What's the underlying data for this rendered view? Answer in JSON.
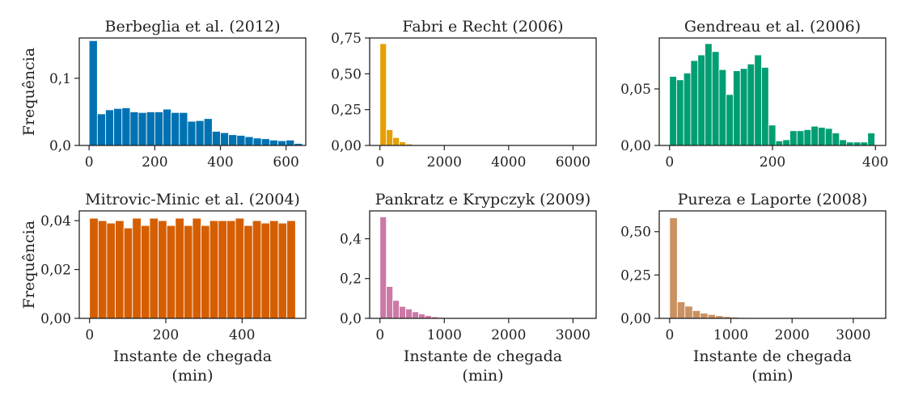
{
  "chart_data": [
    {
      "type": "bar",
      "title": "Berbeglia et al. (2012)",
      "color": "#0072b2",
      "xlabel": "",
      "ylabel": "Frequência",
      "xlim": [
        -30,
        660
      ],
      "ylim": [
        0,
        0.16
      ],
      "xticks": [
        0,
        200,
        400,
        600
      ],
      "xtick_labels": [
        "0",
        "200",
        "400",
        "600"
      ],
      "yticks": [
        0,
        0.1
      ],
      "ytick_labels": [
        "0,0",
        "0,1"
      ],
      "bin_width": 25,
      "x": [
        12.5,
        37.5,
        62.5,
        87.5,
        112.5,
        137.5,
        162.5,
        187.5,
        212.5,
        237.5,
        262.5,
        287.5,
        312.5,
        337.5,
        362.5,
        387.5,
        412.5,
        437.5,
        462.5,
        487.5,
        512.5,
        537.5,
        562.5,
        587.5,
        612.5,
        637.5
      ],
      "values": [
        0.156,
        0.047,
        0.053,
        0.055,
        0.056,
        0.05,
        0.049,
        0.05,
        0.05,
        0.054,
        0.049,
        0.049,
        0.036,
        0.037,
        0.04,
        0.021,
        0.019,
        0.016,
        0.015,
        0.013,
        0.011,
        0.01,
        0.008,
        0.007,
        0.008,
        0.003
      ]
    },
    {
      "type": "bar",
      "title": "Fabri e Recht (2006)",
      "color": "#e69f00",
      "xlabel": "",
      "ylabel": "",
      "xlim": [
        -320,
        6720
      ],
      "ylim": [
        0,
        0.75
      ],
      "xticks": [
        0,
        2000,
        4000,
        6000
      ],
      "xtick_labels": [
        "0",
        "2000",
        "4000",
        "6000"
      ],
      "yticks": [
        0,
        0.25,
        0.5,
        0.75
      ],
      "ytick_labels": [
        "0,00",
        "0,25",
        "0,50",
        "0,75"
      ],
      "bin_width": 200,
      "x": [
        100,
        300,
        500,
        700,
        900,
        1100
      ],
      "values": [
        0.71,
        0.11,
        0.055,
        0.025,
        0.01,
        0.003
      ]
    },
    {
      "type": "bar",
      "title": "Gendreau et al. (2006)",
      "color": "#009e73",
      "xlabel": "",
      "ylabel": "",
      "xlim": [
        -20,
        420
      ],
      "ylim": [
        0,
        0.095
      ],
      "xticks": [
        0,
        200,
        400
      ],
      "xtick_labels": [
        "0",
        "200",
        "400"
      ],
      "yticks": [
        0,
        0.05
      ],
      "ytick_labels": [
        "0,00",
        "0,05"
      ],
      "bin_width": 13.75,
      "x": [
        6.9,
        20.6,
        34.4,
        48.1,
        61.9,
        75.6,
        89.4,
        103.1,
        116.9,
        130.6,
        144.4,
        158.1,
        171.9,
        185.6,
        199.4,
        213.1,
        226.9,
        240.6,
        254.4,
        268.1,
        281.9,
        295.6,
        309.4,
        323.1,
        336.9,
        350.6,
        364.4,
        378.1,
        391.9
      ],
      "values": [
        0.061,
        0.058,
        0.064,
        0.075,
        0.08,
        0.09,
        0.083,
        0.067,
        0.045,
        0.066,
        0.068,
        0.072,
        0.08,
        0.069,
        0.018,
        0.004,
        0.005,
        0.013,
        0.013,
        0.014,
        0.017,
        0.016,
        0.015,
        0.011,
        0.005,
        0.003,
        0.003,
        0.003,
        0.011
      ]
    },
    {
      "type": "bar",
      "title": "Mitrovic-Minic et al. (2004)",
      "color": "#d55e00",
      "xlabel": "Instante de chegada",
      "xlabel_line2": "(min)",
      "ylabel": "Frequência",
      "xlim": [
        -27,
        567
      ],
      "ylim": [
        0,
        0.044
      ],
      "xticks": [
        0,
        200,
        400
      ],
      "xtick_labels": [
        "0",
        "200",
        "400"
      ],
      "yticks": [
        0,
        0.02,
        0.04
      ],
      "ytick_labels": [
        "0,00",
        "0,02",
        "0,04"
      ],
      "bin_width": 22.5,
      "x": [
        11.25,
        33.75,
        56.25,
        78.75,
        101.25,
        123.75,
        146.25,
        168.75,
        191.25,
        213.75,
        236.25,
        258.75,
        281.25,
        303.75,
        326.25,
        348.75,
        371.25,
        393.75,
        416.25,
        438.75,
        461.25,
        483.75,
        506.25,
        528.75
      ],
      "values": [
        0.041,
        0.04,
        0.039,
        0.04,
        0.037,
        0.041,
        0.038,
        0.041,
        0.04,
        0.038,
        0.041,
        0.038,
        0.041,
        0.038,
        0.04,
        0.04,
        0.04,
        0.041,
        0.038,
        0.04,
        0.039,
        0.04,
        0.039,
        0.04
      ]
    },
    {
      "type": "bar",
      "title": "Pankratz e Krypczyk (2009)",
      "color": "#cc79a7",
      "xlabel": "Instante de chegada",
      "xlabel_line2": "(min)",
      "ylabel": "",
      "xlim": [
        -160,
        3360
      ],
      "ylim": [
        0,
        0.54
      ],
      "xticks": [
        0,
        1000,
        2000,
        3000
      ],
      "xtick_labels": [
        "0",
        "1000",
        "2000",
        "3000"
      ],
      "yticks": [
        0,
        0.2,
        0.4
      ],
      "ytick_labels": [
        "0,0",
        "0,2",
        "0,4"
      ],
      "bin_width": 100,
      "x": [
        50,
        150,
        250,
        350,
        450,
        550,
        650,
        750,
        850,
        950,
        1050
      ],
      "values": [
        0.51,
        0.16,
        0.09,
        0.06,
        0.047,
        0.033,
        0.022,
        0.014,
        0.008,
        0.005,
        0.003
      ]
    },
    {
      "type": "bar",
      "title": "Pureza e Laporte (2008)",
      "color": "#ca9161",
      "xlabel": "Instante de chegada",
      "xlabel_line2": "(min)",
      "ylabel": "",
      "xlim": [
        -170,
        3530
      ],
      "ylim": [
        0,
        0.62
      ],
      "xticks": [
        0,
        1000,
        2000,
        3000
      ],
      "xtick_labels": [
        "0",
        "1000",
        "2000",
        "3000"
      ],
      "yticks": [
        0,
        0.25,
        0.5
      ],
      "ytick_labels": [
        "0,00",
        "0,25",
        "0,50"
      ],
      "bin_width": 125,
      "x": [
        62.5,
        187.5,
        312.5,
        437.5,
        562.5,
        687.5,
        812.5,
        937.5,
        1062.5,
        1187.5,
        1312.5,
        1437.5,
        1562.5
      ],
      "values": [
        0.58,
        0.095,
        0.07,
        0.045,
        0.03,
        0.022,
        0.015,
        0.01,
        0.007,
        0.005,
        0.003,
        0.002,
        0.001
      ]
    }
  ]
}
